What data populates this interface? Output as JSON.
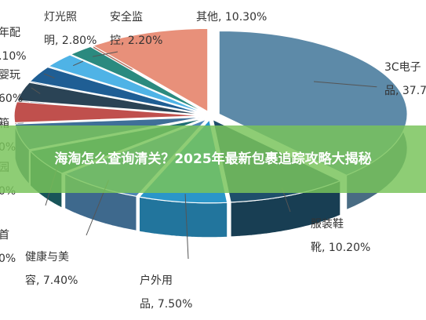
{
  "chart_data": {
    "type": "pie",
    "style": "3d-exploded",
    "title": "",
    "slices": [
      {
        "label": [
          "3C电子",
          "品, 37.7"
        ],
        "value": 37.7,
        "color": "#5d8aa8"
      },
      {
        "label": [
          "服装鞋",
          "靴, 10.20%"
        ],
        "value": 10.2,
        "color": "#1f4f6b"
      },
      {
        "label": [
          "户外用",
          "品, 7.50%"
        ],
        "value": 7.5,
        "color": "#2b96c9"
      },
      {
        "label": [
          "健康与美",
          "容, 7.40%"
        ],
        "value": 7.4,
        "color": "#4f86b5"
      },
      {
        "label": [
          "首",
          "0%"
        ],
        "value": 5.0,
        "color": "#1f6d72"
      },
      {
        "label": [
          "园",
          "0%"
        ],
        "value": 5.0,
        "color": "#3f6f98"
      },
      {
        "label": [
          "箱",
          "0%"
        ],
        "value": 4.0,
        "color": "#c0504d"
      },
      {
        "label": [
          "婴玩",
          "60%"
        ],
        "value": 3.6,
        "color": "#2a4355"
      },
      {
        "label": [
          "年配",
          ".10%"
        ],
        "value": 3.1,
        "color": "#1f5e94"
      },
      {
        "label": [
          "灯光照",
          "明, 2.80%"
        ],
        "value": 2.8,
        "color": "#4fb3e6"
      },
      {
        "label": [
          "安全监",
          "控, 2.20%"
        ],
        "value": 2.2,
        "color": "#2b8a7f"
      },
      {
        "label": [
          "其他, 10.30%"
        ],
        "value": 10.3,
        "color": "#e8907a"
      }
    ]
  },
  "banner": {
    "text": "海淘怎么查询清关？2025年最新包裹追踪攻略大揭秘"
  }
}
